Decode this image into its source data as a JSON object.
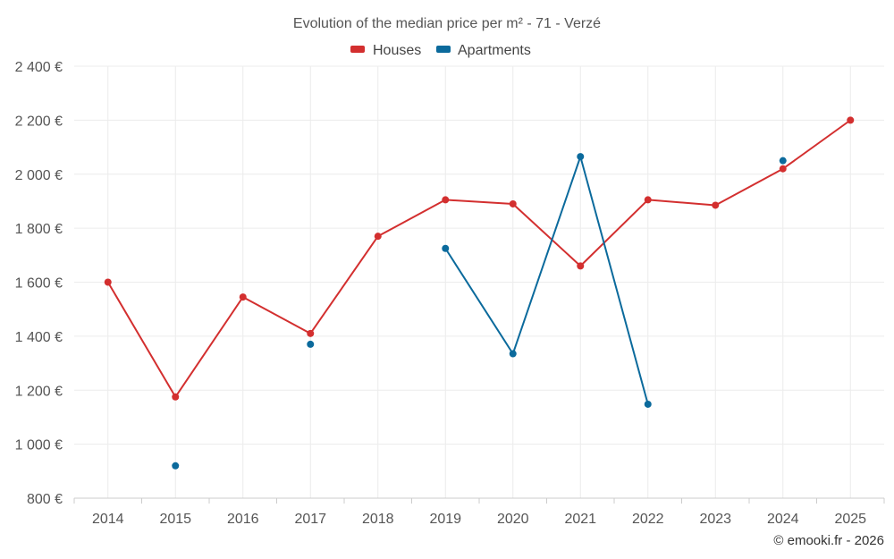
{
  "chart_data": {
    "type": "line",
    "title": "Evolution of the median price per m² - 71 - Verzé",
    "categories": [
      "2014",
      "2015",
      "2016",
      "2017",
      "2018",
      "2019",
      "2020",
      "2021",
      "2022",
      "2023",
      "2024",
      "2025"
    ],
    "y_ticks": [
      800,
      1000,
      1200,
      1400,
      1600,
      1800,
      2000,
      2200,
      2400
    ],
    "y_tick_labels": [
      "800 €",
      "1 000 €",
      "1 200 €",
      "1 400 €",
      "1 600 €",
      "1 800 €",
      "2 000 €",
      "2 200 €",
      "2 400 €"
    ],
    "ylim": [
      800,
      2400
    ],
    "legend_position": "top-center",
    "grid": true,
    "series": [
      {
        "name": "Houses",
        "color": "#d32f2f",
        "values": [
          1600,
          1175,
          1545,
          1410,
          1770,
          1905,
          1890,
          1660,
          1905,
          1885,
          2020,
          2200
        ]
      },
      {
        "name": "Apartments",
        "color": "#0b6a9c",
        "values": [
          null,
          920,
          null,
          1370,
          null,
          1725,
          1335,
          2065,
          1148,
          null,
          2050,
          null
        ]
      }
    ]
  },
  "credit": "© emooki.fr - 2026"
}
